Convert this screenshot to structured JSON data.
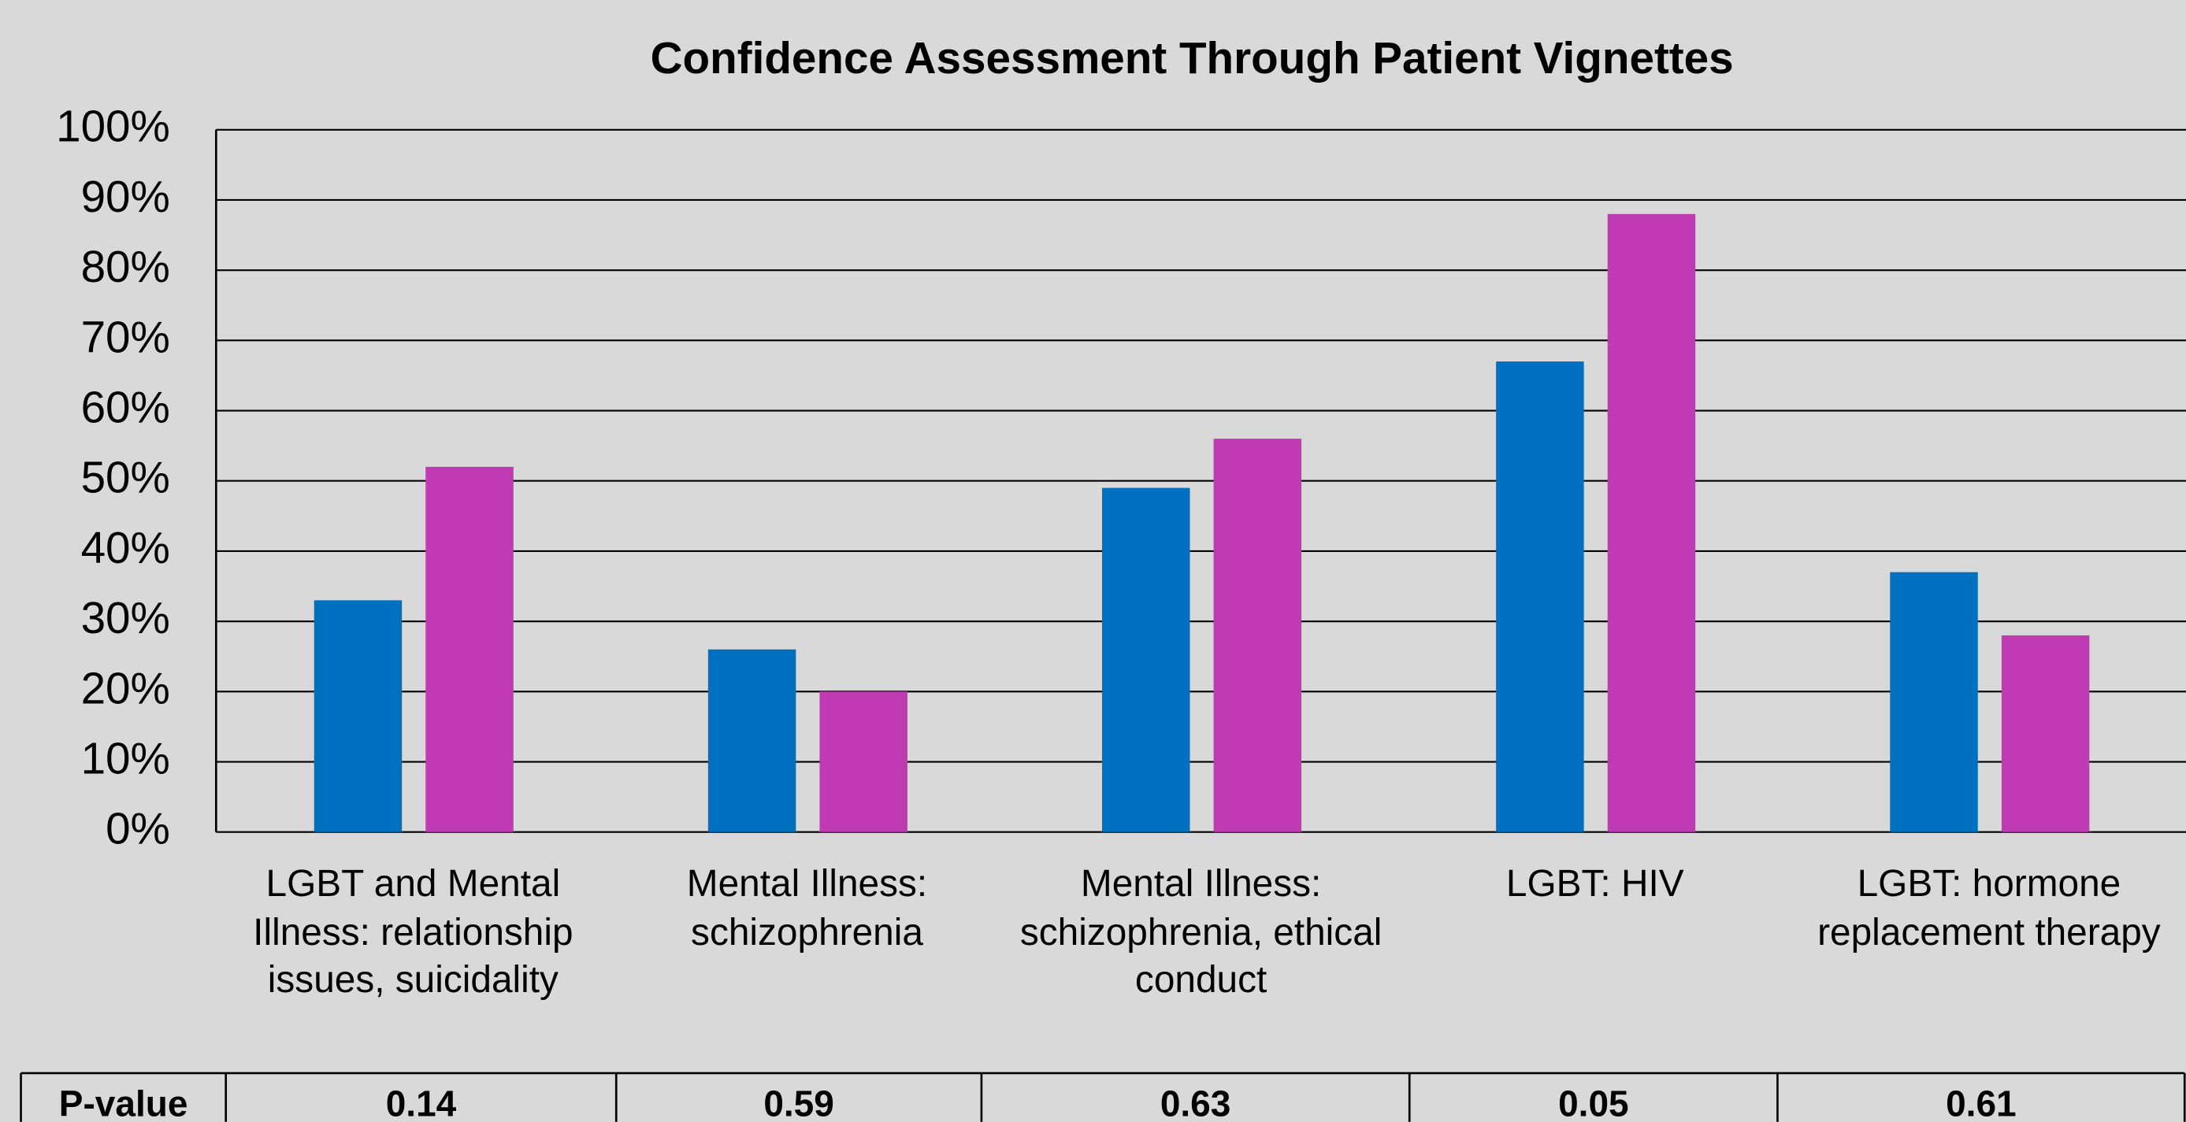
{
  "chart_data": {
    "type": "bar",
    "title": "Confidence Assessment  Through Patient Vignettes",
    "categories": [
      "LGBT and Mental Illness: relationship issues, suicidality",
      "Mental Illness: schizophrenia",
      "Mental Illness: schizophrenia, ethical conduct",
      "LGBT: HIV",
      "LGBT: hormone replacement therapy"
    ],
    "series": [
      {
        "color": "#0070c0",
        "values": [
          33,
          26,
          49,
          67,
          37
        ]
      },
      {
        "color": "#c03ab4",
        "values": [
          52,
          20,
          56,
          88,
          28
        ]
      }
    ],
    "ylim": [
      0,
      100
    ],
    "yticks": [
      {
        "value": 0,
        "label": "0%"
      },
      {
        "value": 10,
        "label": "10%"
      },
      {
        "value": 20,
        "label": "20%"
      },
      {
        "value": 30,
        "label": "30%"
      },
      {
        "value": 40,
        "label": "40%"
      },
      {
        "value": 50,
        "label": "50%"
      },
      {
        "value": 60,
        "label": "60%"
      },
      {
        "value": 70,
        "label": "70%"
      },
      {
        "value": 80,
        "label": "80%"
      },
      {
        "value": 90,
        "label": "90%"
      },
      {
        "value": 100,
        "label": "100%"
      }
    ],
    "grid": true,
    "table": {
      "header": "P-value",
      "values": [
        0.14,
        0.59,
        0.63,
        0.05,
        0.61
      ]
    }
  }
}
